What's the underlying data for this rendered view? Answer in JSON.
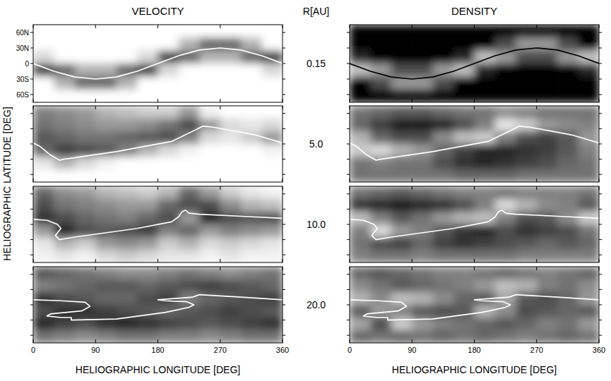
{
  "chart_data": {
    "type": "heatmap",
    "titles": {
      "velocity": "VELOCITY",
      "density": "DENSITY"
    },
    "radius_label": "R[AU]",
    "xlabel": "HELIOGRAPHIC LONGITUDE [DEG]",
    "ylabel": "HELIOGRAPHIC LATITUDE [DEG]",
    "xlim": [
      0,
      360
    ],
    "ylim": [
      -75,
      75
    ],
    "xticks": [
      0,
      90,
      180,
      270,
      360
    ],
    "yticks": [
      {
        "value": 60,
        "label": "60N"
      },
      {
        "value": 30,
        "label": "30N"
      },
      0,
      {
        "value": -30,
        "label": "30S"
      },
      {
        "value": -60,
        "label": "60S"
      }
    ],
    "cell_lon": [
      15,
      45,
      75,
      105,
      135,
      165,
      195,
      225,
      255,
      285,
      315,
      345
    ],
    "cell_lat": [
      62.5,
      37.5,
      12.5,
      -12.5,
      -37.5,
      -62.5
    ],
    "panels": [
      {
        "radius": "0.15",
        "current_sheet": {
          "x": [
            0,
            30,
            60,
            90,
            120,
            150,
            180,
            210,
            240,
            270,
            300,
            330,
            360
          ],
          "y": [
            0,
            -15,
            -26,
            -30,
            -26,
            -15,
            0,
            15,
            26,
            30,
            26,
            15,
            0
          ]
        },
        "velocity": {
          "color": "#ffffff",
          "cells": [
            [
              1,
              1,
              0.85,
              0.25,
              1,
              1
            ],
            [
              1,
              1,
              1,
              0.4,
              0.7,
              1
            ],
            [
              1,
              1,
              1,
              0.7,
              0.4,
              1
            ],
            [
              1,
              1,
              1,
              0.7,
              0.4,
              1
            ],
            [
              1,
              1,
              1,
              0.4,
              0.7,
              1
            ],
            [
              1,
              1,
              0.85,
              0.25,
              1,
              1
            ],
            [
              1,
              1,
              0.25,
              0.85,
              1,
              1
            ],
            [
              1,
              0.7,
              0.4,
              1,
              1,
              1
            ],
            [
              1,
              0.4,
              0.7,
              1,
              1,
              1
            ],
            [
              1,
              0.4,
              0.7,
              1,
              1,
              1
            ],
            [
              1,
              0.7,
              0.4,
              1,
              1,
              1
            ],
            [
              1,
              1,
              0.25,
              0.85,
              1,
              1
            ]
          ]
        },
        "density": {
          "color": "#000000",
          "cells": [
            [
              0,
              0,
              0.15,
              0.75,
              0,
              0
            ],
            [
              0,
              0,
              0,
              0.6,
              0.3,
              0
            ],
            [
              0,
              0,
              0,
              0.3,
              0.6,
              0
            ],
            [
              0,
              0,
              0,
              0.3,
              0.6,
              0
            ],
            [
              0,
              0,
              0,
              0.6,
              0.3,
              0
            ],
            [
              0,
              0,
              0.15,
              0.75,
              0,
              0
            ],
            [
              0,
              0,
              0.75,
              0.15,
              0,
              0
            ],
            [
              0,
              0.3,
              0.6,
              0,
              0,
              0
            ],
            [
              0,
              0.6,
              0.3,
              0,
              0,
              0
            ],
            [
              0,
              0.6,
              0.3,
              0,
              0,
              0
            ],
            [
              0,
              0.3,
              0.6,
              0,
              0,
              0
            ],
            [
              0,
              0,
              0.75,
              0.15,
              0,
              0
            ]
          ]
        }
      },
      {
        "radius": "5.0",
        "current_sheet": {
          "x": [
            0,
            10,
            25,
            38,
            45,
            120,
            200,
            235,
            245,
            260,
            320,
            360
          ],
          "y": [
            2,
            -5,
            -22,
            -32,
            -30,
            -15,
            5,
            28,
            35,
            33,
            18,
            2
          ]
        },
        "velocity": {
          "color": "#ffffff",
          "cells": [
            [
              0.5,
              0.45,
              0.35,
              0.4,
              0.9,
              1
            ],
            [
              0.55,
              0.5,
              0.4,
              0.25,
              0.7,
              1
            ],
            [
              0.6,
              0.55,
              0.45,
              0.3,
              0.85,
              1
            ],
            [
              0.7,
              0.6,
              0.45,
              0.35,
              0.95,
              1
            ],
            [
              0.75,
              0.6,
              0.4,
              0.5,
              1,
              1
            ],
            [
              0.8,
              0.55,
              0.35,
              0.7,
              1,
              1
            ],
            [
              0.8,
              0.45,
              0.3,
              0.85,
              1,
              1
            ],
            [
              0.6,
              0.3,
              0.5,
              0.95,
              1,
              1
            ],
            [
              0.95,
              0.6,
              0.85,
              1,
              1,
              1
            ],
            [
              1,
              0.85,
              0.9,
              1,
              1,
              1
            ],
            [
              1,
              0.9,
              0.8,
              1,
              1,
              1
            ],
            [
              1,
              0.85,
              0.6,
              0.95,
              1,
              1
            ]
          ]
        },
        "density": {
          "color": "#ffffff",
          "cells": [
            [
              0.45,
              0.4,
              0.7,
              0.8,
              0.45,
              0.45
            ],
            [
              0.4,
              0.25,
              0.4,
              0.85,
              0.5,
              0.45
            ],
            [
              0.35,
              0.1,
              0.3,
              0.7,
              0.45,
              0.45
            ],
            [
              0.35,
              0.1,
              0.3,
              0.6,
              0.45,
              0.45
            ],
            [
              0.4,
              0.15,
              0.55,
              0.4,
              0.3,
              0.45
            ],
            [
              0.45,
              0.3,
              0.75,
              0.25,
              0.2,
              0.4
            ],
            [
              0.45,
              0.5,
              0.8,
              0.15,
              0.15,
              0.4
            ],
            [
              0.55,
              0.9,
              0.5,
              0.15,
              0.2,
              0.4
            ],
            [
              0.5,
              0.8,
              0.3,
              0.2,
              0.25,
              0.45
            ],
            [
              0.45,
              0.6,
              0.25,
              0.25,
              0.3,
              0.45
            ],
            [
              0.45,
              0.55,
              0.35,
              0.35,
              0.4,
              0.45
            ],
            [
              0.45,
              0.5,
              0.6,
              0.5,
              0.45,
              0.45
            ]
          ]
        }
      },
      {
        "radius": "10.0",
        "current_sheet": {
          "x": [
            0,
            20,
            35,
            40,
            32,
            38,
            60,
            150,
            200,
            210,
            215,
            220,
            225,
            240,
            300,
            360
          ],
          "y": [
            10,
            8,
            0,
            -8,
            -22,
            -30,
            -25,
            -8,
            5,
            15,
            25,
            28,
            22,
            20,
            16,
            12
          ]
        },
        "velocity": {
          "color": "#ffffff",
          "cells": [
            [
              0.4,
              0.3,
              0.2,
              0.6,
              0.9,
              0.95
            ],
            [
              0.55,
              0.45,
              0.3,
              0.15,
              0.7,
              0.9
            ],
            [
              0.6,
              0.5,
              0.4,
              0.3,
              0.8,
              0.95
            ],
            [
              0.7,
              0.55,
              0.45,
              0.35,
              0.6,
              0.85
            ],
            [
              0.75,
              0.6,
              0.5,
              0.3,
              0.55,
              0.8
            ],
            [
              0.8,
              0.6,
              0.4,
              0.25,
              0.6,
              0.85
            ],
            [
              0.7,
              0.4,
              0.3,
              0.5,
              0.8,
              0.9
            ],
            [
              0.4,
              0.3,
              0.6,
              0.4,
              0.7,
              0.9
            ],
            [
              0.6,
              0.3,
              0.15,
              0.6,
              0.85,
              0.95
            ],
            [
              0.8,
              0.55,
              0.3,
              0.5,
              0.8,
              0.9
            ],
            [
              0.9,
              0.7,
              0.35,
              0.55,
              0.85,
              0.95
            ],
            [
              0.95,
              0.75,
              0.3,
              0.6,
              0.9,
              0.95
            ]
          ]
        },
        "density": {
          "color": "#ffffff",
          "cells": [
            [
              0.45,
              0.2,
              0.75,
              0.5,
              0.45,
              0.5
            ],
            [
              0.4,
              0.15,
              0.5,
              0.85,
              0.3,
              0.45
            ],
            [
              0.35,
              0.1,
              0.35,
              0.6,
              0.25,
              0.45
            ],
            [
              0.4,
              0.15,
              0.45,
              0.5,
              0.4,
              0.5
            ],
            [
              0.45,
              0.2,
              0.6,
              0.35,
              0.25,
              0.45
            ],
            [
              0.5,
              0.3,
              0.7,
              0.2,
              0.2,
              0.45
            ],
            [
              0.5,
              0.5,
              0.75,
              0.15,
              0.25,
              0.45
            ],
            [
              0.45,
              0.85,
              0.5,
              0.3,
              0.3,
              0.45
            ],
            [
              0.5,
              0.7,
              0.3,
              0.2,
              0.35,
              0.5
            ],
            [
              0.5,
              0.55,
              0.35,
              0.25,
              0.4,
              0.5
            ],
            [
              0.5,
              0.5,
              0.55,
              0.3,
              0.35,
              0.5
            ],
            [
              0.45,
              0.35,
              0.8,
              0.45,
              0.4,
              0.5
            ]
          ]
        }
      },
      {
        "radius": "20.0",
        "current_sheet": {
          "x": [
            0,
            40,
            75,
            82,
            70,
            25,
            20,
            40,
            55,
            55,
            120,
            190,
            225,
            232,
            222,
            190,
            180,
            230,
            240,
            265,
            300,
            360
          ],
          "y": [
            10,
            8,
            5,
            -3,
            -12,
            -18,
            -22,
            -25,
            -25,
            -30,
            -28,
            -15,
            -5,
            0,
            6,
            8,
            10,
            15,
            20,
            18,
            15,
            10
          ]
        },
        "velocity": {
          "color": "#ffffff",
          "cells": [
            [
              0.35,
              0.5,
              0.2,
              0.3,
              0.15,
              0.45
            ],
            [
              0.4,
              0.45,
              0.3,
              0.2,
              0.25,
              0.5
            ],
            [
              0.45,
              0.4,
              0.35,
              0.2,
              0.3,
              0.55
            ],
            [
              0.5,
              0.35,
              0.4,
              0.25,
              0.2,
              0.5
            ],
            [
              0.55,
              0.35,
              0.4,
              0.3,
              0.15,
              0.45
            ],
            [
              0.55,
              0.4,
              0.3,
              0.35,
              0.2,
              0.45
            ],
            [
              0.5,
              0.35,
              0.25,
              0.4,
              0.25,
              0.5
            ],
            [
              0.45,
              0.3,
              0.5,
              0.35,
              0.3,
              0.5
            ],
            [
              0.5,
              0.25,
              0.4,
              0.3,
              0.35,
              0.55
            ],
            [
              0.55,
              0.3,
              0.35,
              0.25,
              0.3,
              0.5
            ],
            [
              0.5,
              0.35,
              0.3,
              0.3,
              0.25,
              0.45
            ],
            [
              0.45,
              0.4,
              0.25,
              0.35,
              0.2,
              0.45
            ]
          ]
        },
        "density": {
          "color": "#ffffff",
          "cells": [
            [
              0.4,
              0.55,
              0.7,
              0.35,
              0.65,
              0.4
            ],
            [
              0.35,
              0.45,
              0.55,
              0.6,
              0.3,
              0.45
            ],
            [
              0.4,
              0.35,
              0.75,
              0.5,
              0.8,
              0.4
            ],
            [
              0.45,
              0.4,
              0.7,
              0.35,
              0.6,
              0.45
            ],
            [
              0.5,
              0.45,
              0.55,
              0.3,
              0.5,
              0.4
            ],
            [
              0.5,
              0.5,
              0.4,
              0.35,
              0.45,
              0.45
            ],
            [
              0.45,
              0.6,
              0.35,
              0.7,
              0.4,
              0.4
            ],
            [
              0.4,
              0.75,
              0.65,
              0.55,
              0.35,
              0.45
            ],
            [
              0.45,
              0.7,
              0.35,
              0.3,
              0.4,
              0.5
            ],
            [
              0.5,
              0.5,
              0.3,
              0.35,
              0.5,
              0.45
            ],
            [
              0.45,
              0.45,
              0.4,
              0.4,
              0.45,
              0.4
            ],
            [
              0.4,
              0.55,
              0.6,
              0.35,
              0.6,
              0.45
            ]
          ]
        }
      }
    ]
  }
}
